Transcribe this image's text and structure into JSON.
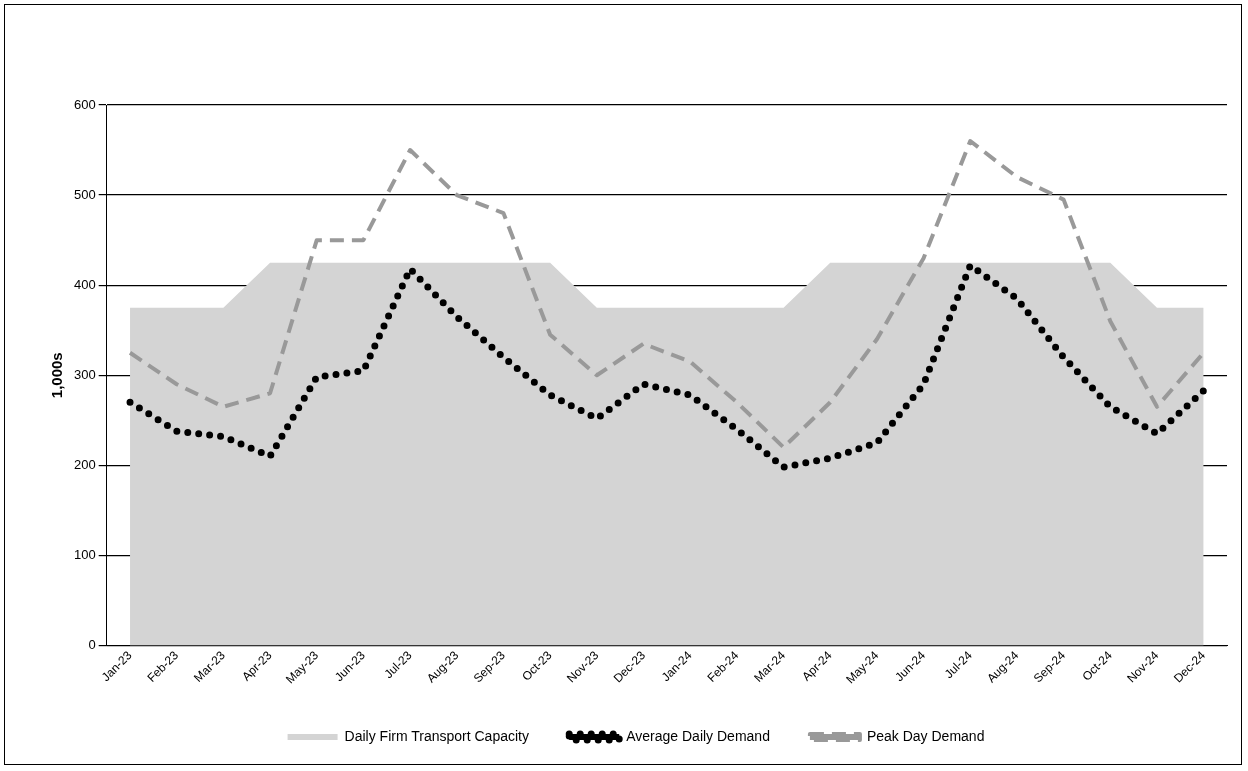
{
  "chart_data": {
    "type": "line",
    "ylabel": "1,000s",
    "categories": [
      "Jan-23",
      "Feb-23",
      "Mar-23",
      "Apr-23",
      "May-23",
      "Jun-23",
      "Jul-23",
      "Aug-23",
      "Sep-23",
      "Oct-23",
      "Nov-23",
      "Dec-23",
      "Jan-24",
      "Feb-24",
      "Mar-24",
      "Apr-24",
      "May-24",
      "Jun-24",
      "Jul-24",
      "Aug-24",
      "Sep-24",
      "Oct-24",
      "Nov-24",
      "Dec-24"
    ],
    "ylim": [
      0,
      600
    ],
    "yticks": [
      0,
      100,
      200,
      300,
      400,
      500,
      600
    ],
    "grid": "y",
    "legend": "bottom",
    "marker": "none",
    "series": [
      {
        "name": "Daily Firm Transport Capacity",
        "type": "area",
        "color": "#d4d4d4",
        "values": [
          375,
          375,
          375,
          425,
          425,
          425,
          425,
          425,
          425,
          425,
          375,
          375,
          375,
          375,
          375,
          425,
          425,
          425,
          425,
          425,
          425,
          425,
          375,
          375
        ]
      },
      {
        "name": "Average Daily Demand",
        "line_style": "dotted",
        "color": "#000000",
        "values": [
          270,
          238,
          232,
          210,
          298,
          305,
          418,
          365,
          320,
          278,
          252,
          290,
          278,
          240,
          198,
          208,
          225,
          290,
          422,
          385,
          320,
          265,
          235,
          283
        ]
      },
      {
        "name": "Peak Day Demand",
        "line_style": "dashed",
        "color": "#999999",
        "values": [
          325,
          290,
          265,
          280,
          450,
          450,
          550,
          500,
          480,
          345,
          300,
          335,
          315,
          270,
          220,
          270,
          340,
          430,
          560,
          520,
          495,
          360,
          265,
          325
        ]
      }
    ]
  }
}
